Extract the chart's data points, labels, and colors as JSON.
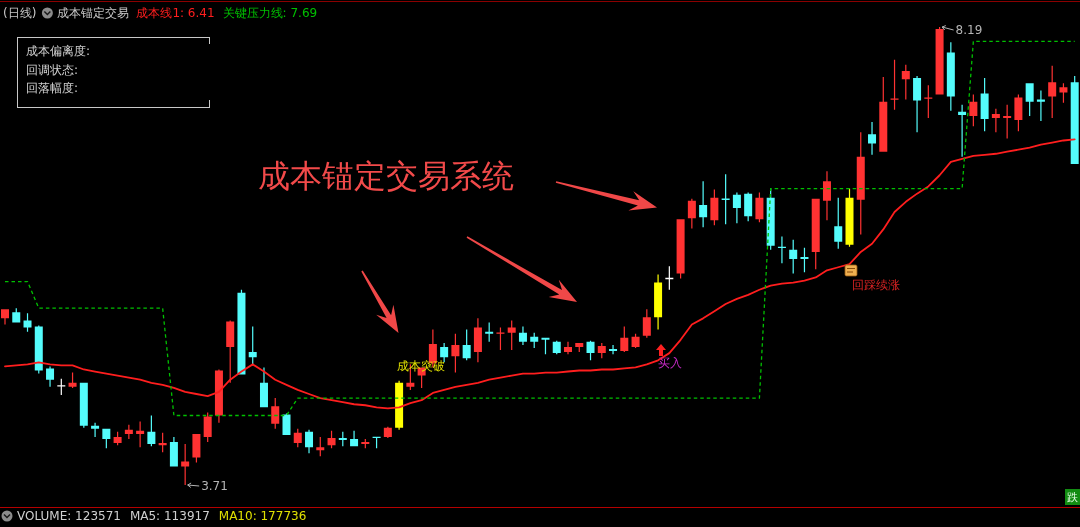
{
  "chart_data": {
    "type": "candlestick",
    "title": "成本锚定交易",
    "subtitle": "(日线)",
    "legend": "top left",
    "categories": [
      null,
      null,
      null,
      null,
      null,
      null,
      null,
      null,
      null,
      null,
      null,
      null,
      null,
      null,
      null,
      null,
      null,
      null,
      null,
      null,
      null,
      null,
      null,
      null,
      null,
      null,
      null,
      null,
      null,
      null,
      null,
      null,
      null,
      null,
      null,
      null,
      null,
      null,
      null,
      null,
      null,
      null,
      null,
      null,
      null,
      null,
      null,
      null,
      null,
      null,
      null,
      null,
      null,
      null,
      null,
      null,
      null,
      null,
      null,
      null,
      null,
      null,
      null,
      null,
      null,
      null,
      null,
      null,
      null,
      null,
      null,
      null,
      null,
      null,
      null,
      null,
      null,
      null,
      null,
      null,
      null,
      null,
      null,
      null,
      null,
      null,
      null,
      null,
      null,
      null,
      null,
      null,
      null,
      null,
      null,
      null
    ],
    "ohlc": [
      [
        5.34,
        5.43,
        5.28,
        5.43
      ],
      [
        5.4,
        5.44,
        5.3,
        5.3
      ],
      [
        5.32,
        5.39,
        5.21,
        5.25
      ],
      [
        5.26,
        5.27,
        4.8,
        4.83
      ],
      [
        4.85,
        4.87,
        4.67,
        4.74
      ],
      [
        4.68,
        4.75,
        4.59,
        4.68
      ],
      [
        4.67,
        4.81,
        4.66,
        4.71
      ],
      [
        4.71,
        4.71,
        4.27,
        4.29
      ],
      [
        4.29,
        4.32,
        4.18,
        4.26
      ],
      [
        4.26,
        4.26,
        4.07,
        4.16
      ],
      [
        4.12,
        4.23,
        4.1,
        4.18
      ],
      [
        4.21,
        4.3,
        4.16,
        4.25
      ],
      [
        4.21,
        4.33,
        4.08,
        4.24
      ],
      [
        4.23,
        4.39,
        4.09,
        4.11
      ],
      [
        4.1,
        4.22,
        4.03,
        4.12
      ],
      [
        4.13,
        4.18,
        3.89,
        3.89
      ],
      [
        3.89,
        4.11,
        3.71,
        3.94
      ],
      [
        3.98,
        4.21,
        3.93,
        4.21
      ],
      [
        4.18,
        4.42,
        4.13,
        4.38
      ],
      [
        4.39,
        4.84,
        4.32,
        4.83
      ],
      [
        5.06,
        5.32,
        4.71,
        5.31
      ],
      [
        5.59,
        5.62,
        4.79,
        4.79
      ],
      [
        5.01,
        5.26,
        4.88,
        4.96
      ],
      [
        4.71,
        4.86,
        4.47,
        4.47
      ],
      [
        4.31,
        4.56,
        4.26,
        4.48
      ],
      [
        4.4,
        4.41,
        4.2,
        4.2
      ],
      [
        4.12,
        4.26,
        4.08,
        4.22
      ],
      [
        4.23,
        4.25,
        4.02,
        4.08
      ],
      [
        4.05,
        4.18,
        3.99,
        4.08
      ],
      [
        4.1,
        4.24,
        4.07,
        4.17
      ],
      [
        4.17,
        4.23,
        4.09,
        4.15
      ],
      [
        4.16,
        4.24,
        4.09,
        4.09
      ],
      [
        4.11,
        4.16,
        4.07,
        4.13
      ],
      [
        4.18,
        4.18,
        4.07,
        4.17
      ],
      [
        4.18,
        4.28,
        4.17,
        4.27
      ],
      [
        4.27,
        4.73,
        4.25,
        4.71
      ],
      [
        4.67,
        4.89,
        4.64,
        4.71
      ],
      [
        4.78,
        4.86,
        4.66,
        4.86
      ],
      [
        4.9,
        5.23,
        4.86,
        5.09
      ],
      [
        5.06,
        5.1,
        4.91,
        4.96
      ],
      [
        4.97,
        5.19,
        4.81,
        5.08
      ],
      [
        5.08,
        5.23,
        4.93,
        4.95
      ],
      [
        5.01,
        5.34,
        4.91,
        5.25
      ],
      [
        5.21,
        5.3,
        5.11,
        5.19
      ],
      [
        5.19,
        5.25,
        5.03,
        5.2
      ],
      [
        5.2,
        5.32,
        5.03,
        5.25
      ],
      [
        5.2,
        5.26,
        5.08,
        5.11
      ],
      [
        5.16,
        5.2,
        5.05,
        5.11
      ],
      [
        5.15,
        5.15,
        4.99,
        5.13
      ],
      [
        5.11,
        5.12,
        4.99,
        5.0
      ],
      [
        5.01,
        5.11,
        4.99,
        5.06
      ],
      [
        5.06,
        5.1,
        5.01,
        5.1
      ],
      [
        5.11,
        5.12,
        4.93,
        5.0
      ],
      [
        5.0,
        5.1,
        4.95,
        5.07
      ],
      [
        5.04,
        5.08,
        4.99,
        5.02
      ],
      [
        5.02,
        5.26,
        5.01,
        5.15
      ],
      [
        5.06,
        5.19,
        5.05,
        5.16
      ],
      [
        5.17,
        5.43,
        5.15,
        5.35
      ],
      [
        5.35,
        5.77,
        5.23,
        5.69
      ],
      [
        5.73,
        5.85,
        5.62,
        5.73
      ],
      [
        5.78,
        6.31,
        5.73,
        6.31
      ],
      [
        6.32,
        6.51,
        6.22,
        6.49
      ],
      [
        6.45,
        6.68,
        6.23,
        6.33
      ],
      [
        6.3,
        6.6,
        6.25,
        6.52
      ],
      [
        6.51,
        6.75,
        6.26,
        6.5
      ],
      [
        6.55,
        6.57,
        6.27,
        6.42
      ],
      [
        6.56,
        6.57,
        6.29,
        6.34
      ],
      [
        6.31,
        6.57,
        6.28,
        6.52
      ],
      [
        6.52,
        6.61,
        6.01,
        6.05
      ],
      [
        6.04,
        6.14,
        5.88,
        6.03
      ],
      [
        6.01,
        6.11,
        5.78,
        5.92
      ],
      [
        5.94,
        6.03,
        5.79,
        5.92
      ],
      [
        5.99,
        6.51,
        5.82,
        6.51
      ],
      [
        6.49,
        6.78,
        6.3,
        6.68
      ],
      [
        6.24,
        6.52,
        6.02,
        6.09
      ],
      [
        6.06,
        6.61,
        6.04,
        6.52
      ],
      [
        6.5,
        7.16,
        6.16,
        6.92
      ],
      [
        7.14,
        7.26,
        6.94,
        7.05
      ],
      [
        6.97,
        7.7,
        6.97,
        7.46
      ],
      [
        7.48,
        7.87,
        7.38,
        7.49
      ],
      [
        7.68,
        7.82,
        7.48,
        7.76
      ],
      [
        7.69,
        7.71,
        7.16,
        7.47
      ],
      [
        7.49,
        7.62,
        7.3,
        7.5
      ],
      [
        7.53,
        8.19,
        7.53,
        8.17
      ],
      [
        7.94,
        8.04,
        7.37,
        7.51
      ],
      [
        7.36,
        7.43,
        6.92,
        7.33
      ],
      [
        7.32,
        7.53,
        7.22,
        7.46
      ],
      [
        7.54,
        7.69,
        7.17,
        7.29
      ],
      [
        7.3,
        7.39,
        7.16,
        7.34
      ],
      [
        7.3,
        7.43,
        7.1,
        7.32
      ],
      [
        7.28,
        7.53,
        7.17,
        7.5
      ],
      [
        7.64,
        7.64,
        7.32,
        7.46
      ],
      [
        7.48,
        7.57,
        7.27,
        7.46
      ],
      [
        7.51,
        7.81,
        7.3,
        7.65
      ],
      [
        7.55,
        7.64,
        7.45,
        7.6
      ],
      [
        7.65,
        7.71,
        6.85,
        6.85
      ]
    ],
    "colors": [
      "#ff3232",
      "#54fcfc",
      "#54fcfc",
      "#54fcfc",
      "#54fcfc",
      "#ffffff",
      "#ff3232",
      "#54fcfc",
      "#54fcfc",
      "#54fcfc",
      "#ff3232",
      "#ff3232",
      "#ff3232",
      "#54fcfc",
      "#ff3232",
      "#54fcfc",
      "#ff3232",
      "#ff3232",
      "#ff3232",
      "#ff3232",
      "#ff3232",
      "#54fcfc",
      "#54fcfc",
      "#54fcfc",
      "#ff3232",
      "#54fcfc",
      "#ff3232",
      "#54fcfc",
      "#ff3232",
      "#ff3232",
      "#54fcfc",
      "#54fcfc",
      "#ff3232",
      "#54fcfc",
      "#ff3232",
      "#ffff00",
      "#ff3232",
      "#ff3232",
      "#ff3232",
      "#54fcfc",
      "#ff3232",
      "#54fcfc",
      "#ff3232",
      "#54fcfc",
      "#ff3232",
      "#ff3232",
      "#54fcfc",
      "#54fcfc",
      "#54fcfc",
      "#54fcfc",
      "#ff3232",
      "#ff3232",
      "#54fcfc",
      "#ff3232",
      "#54fcfc",
      "#ff3232",
      "#ff3232",
      "#ff3232",
      "#ffff00",
      "#ffffff",
      "#ff3232",
      "#ff3232",
      "#54fcfc",
      "#ff3232",
      "#54fcfc",
      "#54fcfc",
      "#54fcfc",
      "#ff3232",
      "#54fcfc",
      "#54fcfc",
      "#54fcfc",
      "#54fcfc",
      "#ff3232",
      "#ff3232",
      "#54fcfc",
      "#ffff00",
      "#ff3232",
      "#54fcfc",
      "#ff3232",
      "#ff3232",
      "#ff3232",
      "#54fcfc",
      "#ff3232",
      "#ff3232",
      "#54fcfc",
      "#54fcfc",
      "#ff3232",
      "#54fcfc",
      "#ff3232",
      "#ff3232",
      "#ff3232",
      "#54fcfc",
      "#54fcfc",
      "#ff3232",
      "#ff3232",
      "#54fcfc"
    ],
    "series": [
      {
        "name": "成本线1: 6.41",
        "type": "line",
        "color": "#ff1e1e",
        "line_style": "solid",
        "values": [
          4.87,
          4.88,
          4.89,
          4.91,
          4.89,
          4.88,
          4.88,
          4.84,
          4.82,
          4.8,
          4.78,
          4.76,
          4.74,
          4.71,
          4.69,
          4.66,
          4.62,
          4.6,
          4.58,
          4.62,
          4.74,
          4.82,
          4.89,
          4.82,
          4.74,
          4.69,
          4.64,
          4.6,
          4.56,
          4.54,
          4.52,
          4.5,
          4.49,
          4.47,
          4.46,
          4.47,
          4.51,
          4.54,
          4.61,
          4.64,
          4.67,
          4.69,
          4.71,
          4.74,
          4.76,
          4.78,
          4.8,
          4.8,
          4.81,
          4.81,
          4.82,
          4.83,
          4.83,
          4.84,
          4.84,
          4.85,
          4.86,
          4.89,
          4.93,
          5.0,
          5.13,
          5.28,
          5.34,
          5.41,
          5.48,
          5.53,
          5.57,
          5.62,
          5.66,
          5.68,
          5.69,
          5.71,
          5.74,
          5.81,
          5.84,
          5.87,
          5.99,
          6.07,
          6.21,
          6.38,
          6.48,
          6.56,
          6.63,
          6.74,
          6.87,
          6.9,
          6.93,
          6.94,
          6.95,
          6.97,
          6.99,
          7.01,
          7.04,
          7.06,
          7.08,
          7.09
        ]
      },
      {
        "name": "关键压力线: 7.69",
        "type": "line",
        "color": "#00c000",
        "line_style": "dashed",
        "values": [
          5.7,
          5.7,
          5.7,
          5.44,
          5.44,
          5.44,
          5.44,
          5.44,
          5.44,
          5.44,
          5.44,
          5.44,
          5.44,
          5.44,
          5.44,
          4.39,
          4.39,
          4.39,
          4.39,
          4.39,
          4.39,
          4.39,
          4.39,
          4.39,
          4.39,
          4.39,
          4.56,
          4.56,
          4.56,
          4.56,
          4.56,
          4.56,
          4.56,
          4.56,
          4.56,
          4.56,
          4.56,
          4.56,
          4.56,
          4.56,
          4.56,
          4.56,
          4.56,
          4.56,
          4.56,
          4.56,
          4.56,
          4.56,
          4.56,
          4.56,
          4.56,
          4.56,
          4.56,
          4.56,
          4.56,
          4.56,
          4.56,
          4.56,
          4.56,
          4.56,
          4.56,
          4.56,
          4.56,
          4.56,
          4.56,
          4.56,
          4.56,
          4.56,
          6.61,
          6.61,
          6.61,
          6.61,
          6.61,
          6.61,
          6.61,
          6.61,
          6.61,
          6.61,
          6.61,
          6.61,
          6.61,
          6.61,
          6.61,
          6.61,
          6.61,
          6.61,
          8.05,
          8.05,
          8.05,
          8.05,
          8.05,
          8.05,
          8.05,
          8.05,
          8.05,
          8.05
        ]
      }
    ],
    "annotations": [
      "成本锚定交易系统",
      "成本偏离度:",
      "回调状态:",
      "回落幅度:",
      "8.19",
      "3.71",
      "成本突破",
      "买入",
      "回踩续涨",
      "VOLUME: 123571",
      "MA5: 113917",
      "MA10: 177736",
      "跌"
    ]
  }
}
